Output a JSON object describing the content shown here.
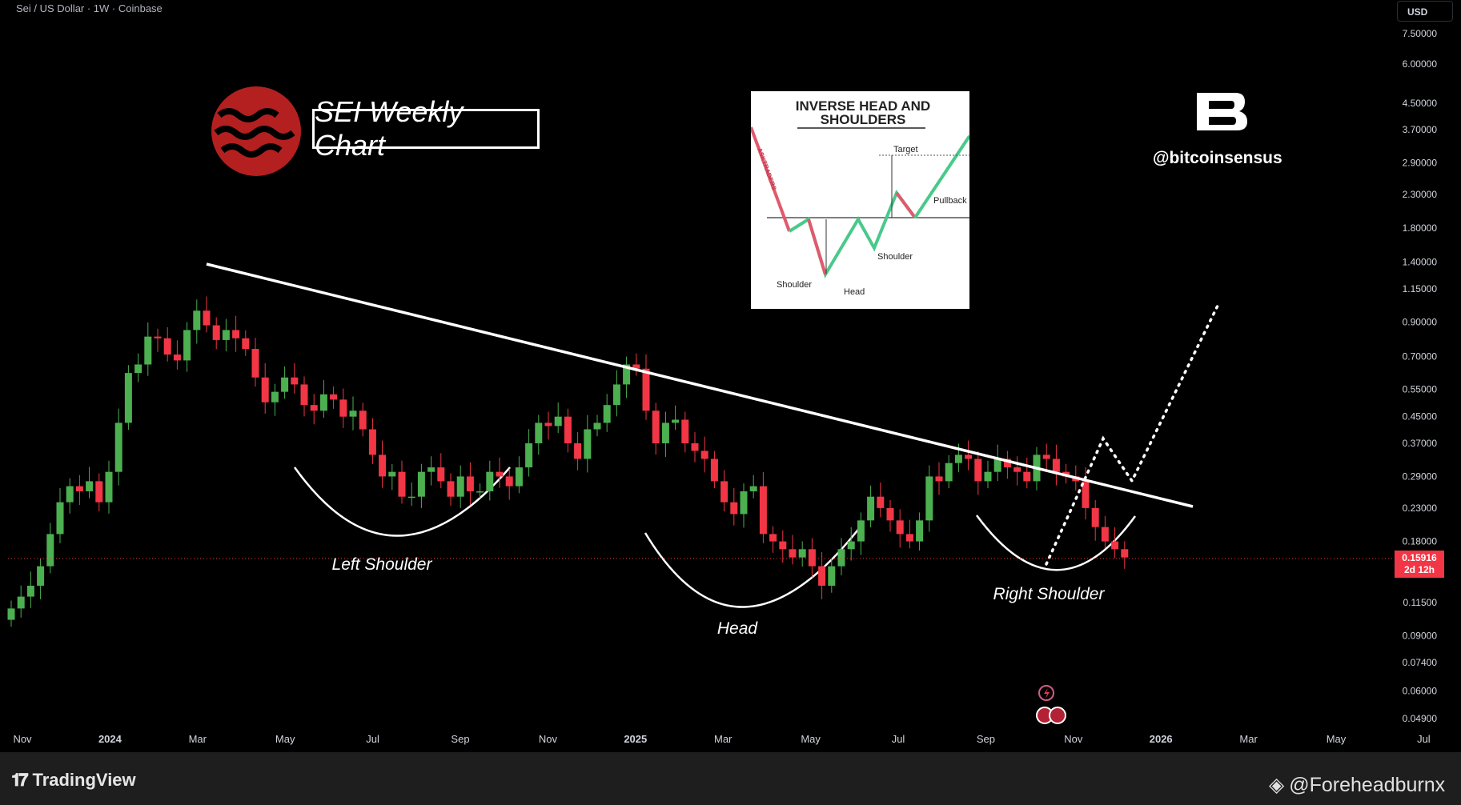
{
  "header": {
    "symbol_line": "Sei / US Dollar · 1W · Coinbase",
    "currency_button": "USD"
  },
  "overlay": {
    "title": "SEI Weekly Chart",
    "handle": "@bitcoinsensus",
    "pattern_labels": [
      "Left Shoulder",
      "Head",
      "Right Shoulder"
    ]
  },
  "inset": {
    "title_line1": "INVERSE HEAD AND",
    "title_line2": "SHOULDERS",
    "labels": [
      "Target",
      "Pullback",
      "Shoulder",
      "Head",
      "Shoulder"
    ],
    "trend_label": "ASKTRADERS"
  },
  "price_tag": {
    "price": "0.15916",
    "countdown": "2d 12h"
  },
  "footer": {
    "brand": "TradingView",
    "credit": "@Foreheadburnx"
  },
  "colors": {
    "up": "#4caf50",
    "down": "#f23645",
    "background": "#000000",
    "trendline": "#ffffff"
  },
  "chart_data": {
    "type": "candlestick",
    "title": "Sei / US Dollar · 1W · Coinbase",
    "y_scale": "log",
    "y_ticks": [
      7.5,
      6.0,
      4.5,
      3.7,
      2.9,
      2.3,
      1.8,
      1.4,
      1.15,
      0.9,
      0.7,
      0.55,
      0.45,
      0.37,
      0.29,
      0.23,
      0.18,
      0.115,
      0.09,
      0.074,
      0.06,
      0.049
    ],
    "x_ticks": [
      "Nov",
      "2024",
      "Mar",
      "May",
      "Jul",
      "Sep",
      "Nov",
      "2025",
      "Mar",
      "May",
      "Jul",
      "Sep",
      "Nov",
      "2026",
      "Mar",
      "May",
      "Jul"
    ],
    "last_price": 0.15916,
    "weekly_closes": [
      0.11,
      0.12,
      0.13,
      0.15,
      0.19,
      0.24,
      0.27,
      0.26,
      0.28,
      0.24,
      0.3,
      0.43,
      0.62,
      0.66,
      0.81,
      0.8,
      0.71,
      0.68,
      0.85,
      0.98,
      0.88,
      0.79,
      0.85,
      0.8,
      0.74,
      0.6,
      0.5,
      0.54,
      0.6,
      0.57,
      0.49,
      0.47,
      0.53,
      0.51,
      0.45,
      0.47,
      0.41,
      0.34,
      0.29,
      0.3,
      0.25,
      0.25,
      0.3,
      0.31,
      0.28,
      0.25,
      0.29,
      0.26,
      0.26,
      0.3,
      0.29,
      0.27,
      0.31,
      0.37,
      0.43,
      0.42,
      0.45,
      0.37,
      0.33,
      0.41,
      0.43,
      0.49,
      0.57,
      0.66,
      0.64,
      0.47,
      0.37,
      0.43,
      0.44,
      0.37,
      0.35,
      0.33,
      0.28,
      0.24,
      0.22,
      0.26,
      0.27,
      0.19,
      0.18,
      0.17,
      0.16,
      0.17,
      0.15,
      0.13,
      0.15,
      0.17,
      0.18,
      0.21,
      0.25,
      0.23,
      0.21,
      0.19,
      0.18,
      0.21,
      0.29,
      0.28,
      0.32,
      0.34,
      0.33,
      0.28,
      0.3,
      0.33,
      0.31,
      0.3,
      0.28,
      0.34,
      0.33,
      0.3,
      0.29,
      0.28,
      0.23,
      0.2,
      0.18,
      0.17,
      0.16
    ],
    "trendline": [
      {
        "x": "2024-03-01",
        "y": 1.35
      },
      {
        "x": "2026-02-15",
        "y": 0.23
      }
    ],
    "projection": [
      {
        "x": "2025-11-15",
        "y": 0.155
      },
      {
        "x": "2025-12-20",
        "y": 0.36
      },
      {
        "x": "2026-01-05",
        "y": 0.28
      },
      {
        "x": "2026-03-25",
        "y": 1.0
      }
    ]
  }
}
